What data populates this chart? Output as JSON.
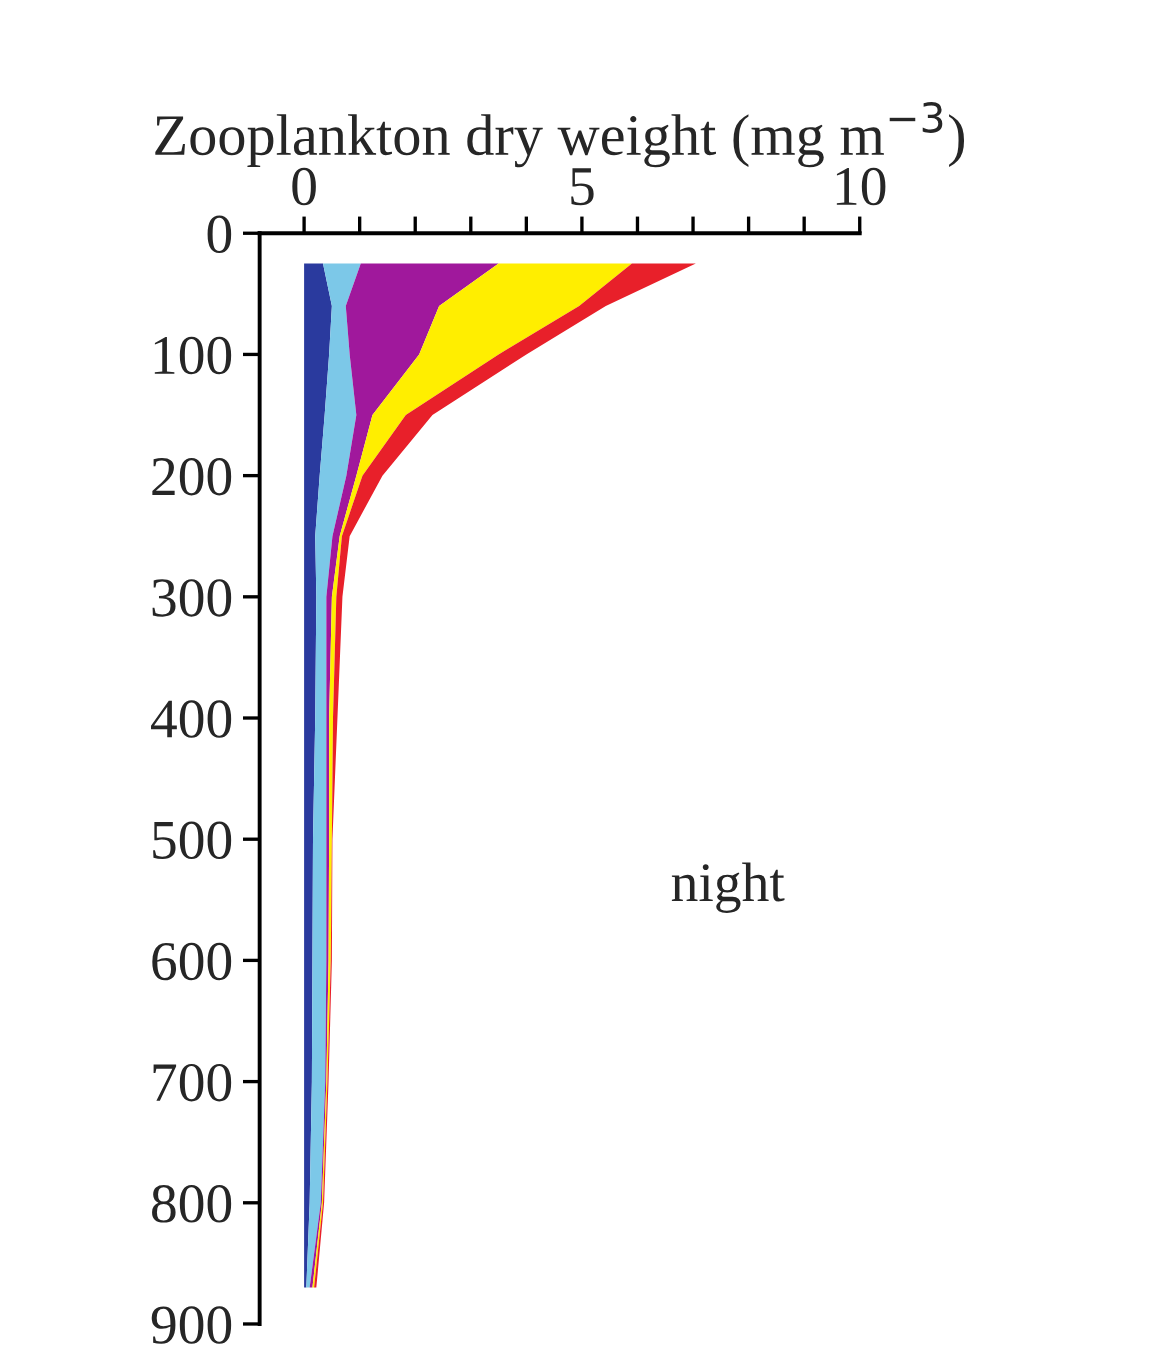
{
  "chart_data": {
    "type": "area",
    "orientation": "horizontal",
    "stacked": true,
    "xlabel": "Zooplankton dry weight (mg m$^{−3}$)",
    "annotations": [
      "night"
    ],
    "x": [
      25,
      60,
      100,
      150,
      200,
      250,
      300,
      400,
      500,
      600,
      700,
      800,
      870
    ],
    "series": [
      {
        "color": "#2a3a9e",
        "values": [
          0.34,
          0.5,
          0.45,
          0.37,
          0.28,
          0.2,
          0.22,
          0.2,
          0.16,
          0.15,
          0.14,
          0.1,
          0.04
        ]
      },
      {
        "color": "#7cc8e8",
        "values": [
          0.68,
          0.25,
          0.37,
          0.57,
          0.48,
          0.31,
          0.18,
          0.2,
          0.24,
          0.25,
          0.24,
          0.2,
          0.06
        ]
      },
      {
        "color": "#a0189c",
        "values": [
          2.48,
          1.68,
          1.25,
          0.29,
          0.18,
          0.13,
          0.1,
          0.05,
          0.05,
          0.04,
          0.02,
          0.02,
          0.05
        ]
      },
      {
        "color": "#ffee00",
        "values": [
          2.4,
          2.52,
          1.43,
          0.6,
          0.11,
          0.04,
          0.08,
          0.07,
          0.05,
          0.04,
          0.02,
          0.02,
          0.03
        ]
      },
      {
        "color": "#e8202a",
        "values": [
          1.15,
          0.48,
          0.5,
          0.48,
          0.36,
          0.14,
          0.11,
          0.08,
          0.01,
          0.02,
          0.02,
          0.02,
          0.04
        ]
      }
    ],
    "xlim": [
      -0.8,
      10
    ],
    "xticks": [
      0,
      {
        "value": 1,
        "label": null
      },
      {
        "value": 2,
        "label": null
      },
      {
        "value": 3,
        "label": null
      },
      {
        "value": 4,
        "label": null
      },
      5,
      {
        "value": 6,
        "label": null
      },
      {
        "value": 7,
        "label": null
      },
      {
        "value": 8,
        "label": null
      },
      {
        "value": 9,
        "label": null
      },
      10
    ],
    "ylim": [
      900,
      0
    ],
    "yticks": [
      0,
      100,
      200,
      300,
      400,
      500,
      600,
      700,
      800,
      900
    ],
    "grid": false,
    "legend": false
  }
}
